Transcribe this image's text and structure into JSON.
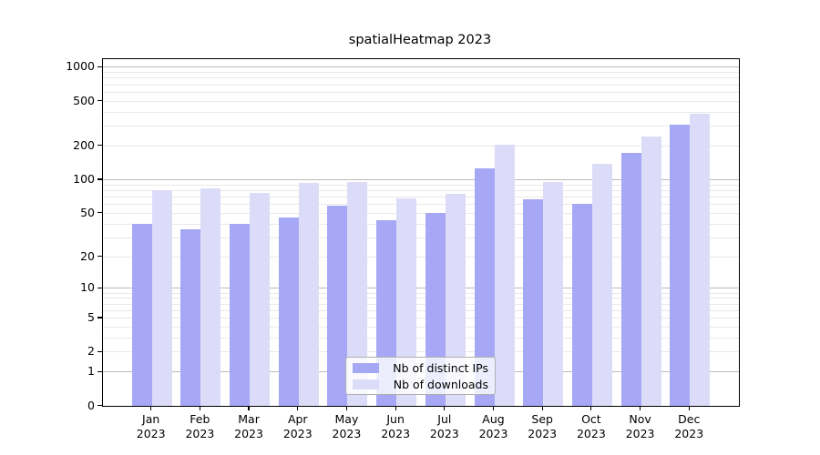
{
  "chart_data": {
    "type": "bar",
    "title": "spatialHeatmap 2023",
    "x_categories": [
      "Jan",
      "Feb",
      "Mar",
      "Apr",
      "May",
      "Jun",
      "Jul",
      "Aug",
      "Sep",
      "Oct",
      "Nov",
      "Dec"
    ],
    "x_year_suffix": "2023",
    "y_scale": "log1p",
    "y_ticks": [
      0,
      1,
      2,
      5,
      10,
      20,
      50,
      100,
      200,
      500,
      1000
    ],
    "y_major_gridlines": [
      1,
      10,
      100,
      1000
    ],
    "ylim": [
      0,
      1150
    ],
    "grid": "horizontal major+minor",
    "legend_position": "lower center",
    "series": [
      {
        "name": "Nb of distinct IPs",
        "color": "#a7a8f5",
        "values": [
          40,
          36,
          40,
          46,
          59,
          43,
          50,
          126,
          67,
          61,
          172,
          311
        ]
      },
      {
        "name": "Nb of downloads",
        "color": "#dcdcf9",
        "values": [
          80,
          84,
          76,
          94,
          96,
          68,
          75,
          207,
          95,
          139,
          242,
          386
        ]
      }
    ]
  },
  "colors": {
    "major_grid": "#bbbbbb",
    "minor_grid": "#e9e9e9",
    "spine": "#000000",
    "legend_border": "#b0b0b0"
  }
}
